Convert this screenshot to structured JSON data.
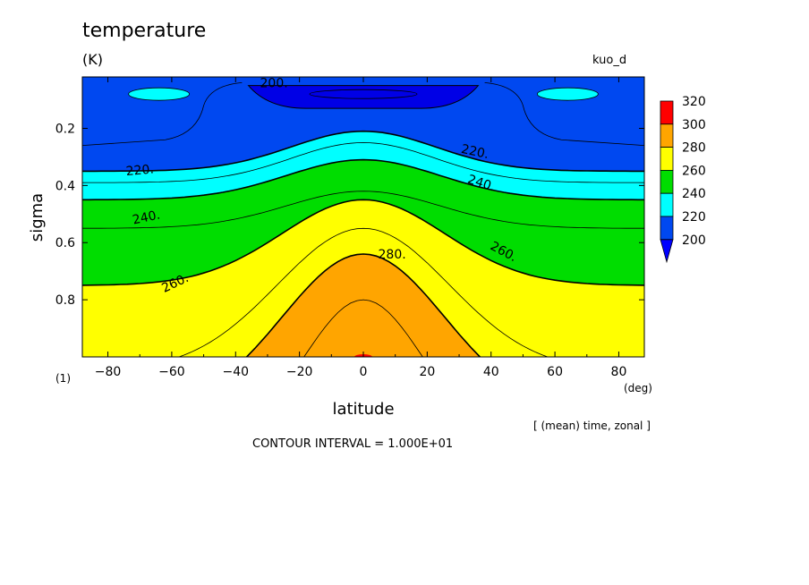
{
  "chart_data": {
    "type": "contour",
    "title": "temperature",
    "units": "(K)",
    "run_label": "kuo_d",
    "xlabel": "latitude",
    "xunit": "(deg)",
    "ylabel": "sigma",
    "panel_label": "(1)",
    "xlim": [
      -88,
      88
    ],
    "ylim": [
      0.02,
      1.0
    ],
    "y_inverted": true,
    "xticks": [
      -80,
      -60,
      -40,
      -20,
      0,
      20,
      40,
      60,
      80
    ],
    "xtick_labels": [
      "−80",
      "−60",
      "−40",
      "−20",
      "0",
      "20",
      "40",
      "60",
      "80"
    ],
    "yticks": [
      0.2,
      0.4,
      0.6,
      0.8
    ],
    "ytick_labels": [
      "0.2",
      "0.4",
      "0.6",
      "0.8"
    ],
    "contour_interval": 10,
    "contour_labels": [
      "200.",
      "220.",
      "220.",
      "240.",
      "240.",
      "260.",
      "260.",
      "280."
    ],
    "colorbar": {
      "levels": [
        200,
        220,
        240,
        260,
        280,
        300,
        320
      ],
      "tick_labels": [
        "200",
        "220",
        "240",
        "260",
        "280",
        "300",
        "320"
      ],
      "colors": [
        "#0000ff",
        "#0078ff",
        "#00ffff",
        "#00dd00",
        "#ffff00",
        "#ffa500",
        "#ff0000"
      ],
      "low_color": "#0000ff",
      "band_colors": [
        "#0048f0",
        "#00ffff",
        "#00dd00",
        "#ffff00",
        "#ffa500",
        "#ff0000"
      ]
    },
    "field_description_bands": {
      "below_200": "upper equatorial core (sigma < 0.12, |lat| < 35)",
      "200_220": "upper levels (sigma < 0.25-0.35)",
      "220_240": "sigma ~0.25-0.45",
      "240_260": "sigma ~0.45-0.75",
      "260_280": "lower levels",
      "280_300": "tropics near surface",
      "300_320": "equator at surface"
    }
  },
  "footnote": "[ (mean) time, zonal ]",
  "contour_text": "CONTOUR INTERVAL = 1.000E+01"
}
